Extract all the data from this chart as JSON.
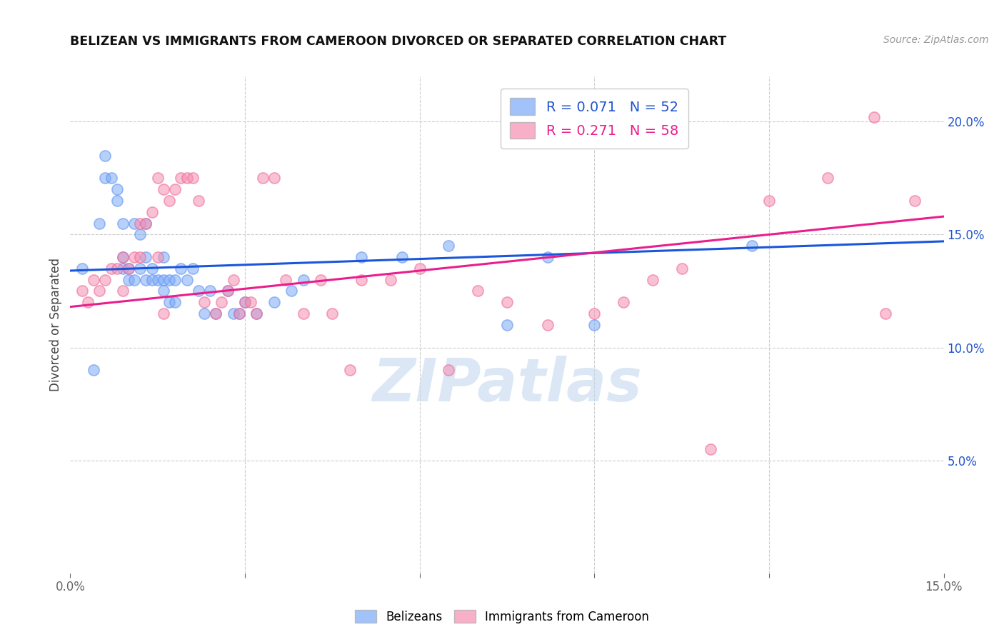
{
  "title": "BELIZEAN VS IMMIGRANTS FROM CAMEROON DIVORCED OR SEPARATED CORRELATION CHART",
  "source": "Source: ZipAtlas.com",
  "ylabel": "Divorced or Separated",
  "x_min": 0.0,
  "x_max": 0.15,
  "y_min": 0.0,
  "y_max": 0.22,
  "y_ticks_right": [
    0.05,
    0.1,
    0.15,
    0.2
  ],
  "y_tick_labels_right": [
    "5.0%",
    "10.0%",
    "15.0%",
    "20.0%"
  ],
  "legend_label_blue": "Belizeans",
  "legend_label_pink": "Immigrants from Cameroon",
  "blue_color": "#7baaf7",
  "pink_color": "#f48fb1",
  "blue_edge_color": "#5b8ef0",
  "pink_edge_color": "#f06292",
  "trendline_blue_color": "#1a56db",
  "trendline_pink_color": "#e91e8c",
  "watermark": "ZIPatlas",
  "watermark_color": "#c5d8f0",
  "blue_points_x": [
    0.002,
    0.004,
    0.005,
    0.006,
    0.006,
    0.007,
    0.008,
    0.008,
    0.009,
    0.009,
    0.009,
    0.01,
    0.01,
    0.011,
    0.011,
    0.012,
    0.012,
    0.013,
    0.013,
    0.013,
    0.014,
    0.014,
    0.015,
    0.016,
    0.016,
    0.016,
    0.017,
    0.017,
    0.018,
    0.018,
    0.019,
    0.02,
    0.021,
    0.022,
    0.023,
    0.024,
    0.025,
    0.027,
    0.028,
    0.029,
    0.03,
    0.032,
    0.035,
    0.038,
    0.04,
    0.05,
    0.057,
    0.065,
    0.075,
    0.082,
    0.09,
    0.117
  ],
  "blue_points_y": [
    0.135,
    0.09,
    0.155,
    0.175,
    0.185,
    0.175,
    0.165,
    0.17,
    0.135,
    0.14,
    0.155,
    0.13,
    0.135,
    0.13,
    0.155,
    0.135,
    0.15,
    0.13,
    0.14,
    0.155,
    0.13,
    0.135,
    0.13,
    0.125,
    0.13,
    0.14,
    0.12,
    0.13,
    0.12,
    0.13,
    0.135,
    0.13,
    0.135,
    0.125,
    0.115,
    0.125,
    0.115,
    0.125,
    0.115,
    0.115,
    0.12,
    0.115,
    0.12,
    0.125,
    0.13,
    0.14,
    0.14,
    0.145,
    0.11,
    0.14,
    0.11,
    0.145
  ],
  "pink_points_x": [
    0.002,
    0.003,
    0.004,
    0.005,
    0.006,
    0.007,
    0.008,
    0.009,
    0.009,
    0.01,
    0.011,
    0.012,
    0.012,
    0.013,
    0.014,
    0.015,
    0.015,
    0.016,
    0.016,
    0.017,
    0.018,
    0.019,
    0.02,
    0.021,
    0.022,
    0.023,
    0.025,
    0.026,
    0.027,
    0.028,
    0.029,
    0.03,
    0.031,
    0.032,
    0.033,
    0.035,
    0.037,
    0.04,
    0.043,
    0.045,
    0.048,
    0.05,
    0.055,
    0.06,
    0.065,
    0.07,
    0.075,
    0.082,
    0.09,
    0.095,
    0.1,
    0.105,
    0.11,
    0.12,
    0.13,
    0.138,
    0.14,
    0.145
  ],
  "pink_points_y": [
    0.125,
    0.12,
    0.13,
    0.125,
    0.13,
    0.135,
    0.135,
    0.125,
    0.14,
    0.135,
    0.14,
    0.14,
    0.155,
    0.155,
    0.16,
    0.14,
    0.175,
    0.115,
    0.17,
    0.165,
    0.17,
    0.175,
    0.175,
    0.175,
    0.165,
    0.12,
    0.115,
    0.12,
    0.125,
    0.13,
    0.115,
    0.12,
    0.12,
    0.115,
    0.175,
    0.175,
    0.13,
    0.115,
    0.13,
    0.115,
    0.09,
    0.13,
    0.13,
    0.135,
    0.09,
    0.125,
    0.12,
    0.11,
    0.115,
    0.12,
    0.13,
    0.135,
    0.055,
    0.165,
    0.175,
    0.202,
    0.115,
    0.165
  ],
  "blue_trend_x": [
    0.0,
    0.15
  ],
  "blue_trend_y": [
    0.134,
    0.147
  ],
  "pink_trend_x": [
    0.0,
    0.15
  ],
  "pink_trend_y": [
    0.118,
    0.158
  ]
}
